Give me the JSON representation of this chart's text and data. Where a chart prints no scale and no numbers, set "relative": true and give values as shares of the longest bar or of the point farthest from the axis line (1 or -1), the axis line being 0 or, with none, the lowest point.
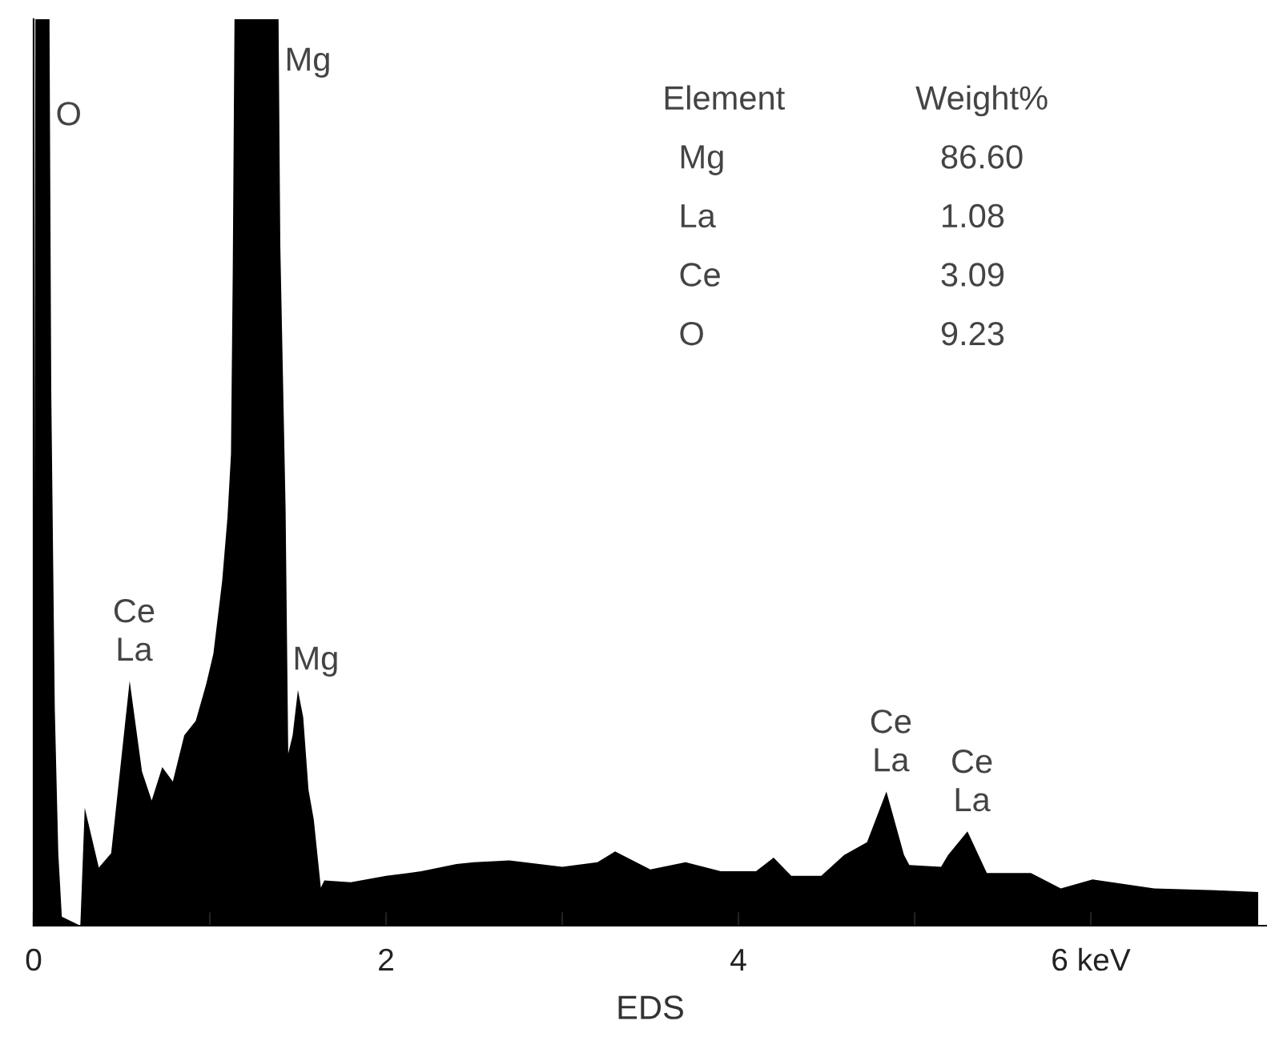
{
  "chart_data": {
    "type": "area",
    "relative": true,
    "xlabel": "EDS",
    "xlim": [
      0,
      7
    ],
    "xticks": [
      0,
      {
        "value": 1,
        "label": null
      },
      2,
      {
        "value": 3,
        "label": null
      },
      4,
      {
        "value": 5,
        "label": null
      },
      {
        "value": 6,
        "label": "6 keV"
      }
    ],
    "series": [
      {
        "color": "#000000",
        "x": [
          0,
          0.01,
          0.09,
          0.1,
          0.12,
          0.14,
          0.16,
          0.265,
          0.29,
          0.37,
          0.44,
          0.545,
          0.615,
          0.67,
          0.73,
          0.79,
          0.855,
          0.92,
          0.98,
          1.02,
          1.07,
          1.1,
          1.12,
          1.13,
          1.14,
          1.39,
          1.4,
          1.43,
          1.445,
          1.47,
          1.5,
          1.53,
          1.56,
          1.59,
          1.63,
          1.65,
          1.8,
          2.0,
          2.2,
          2.4,
          2.5,
          2.7,
          3.0,
          3.2,
          3.3,
          3.5,
          3.7,
          3.9,
          4.1,
          4.2,
          4.3,
          4.47,
          4.6,
          4.73,
          4.84,
          4.94,
          4.97,
          5.15,
          5.19,
          5.3,
          5.41,
          5.66,
          5.83,
          6.01,
          6.36,
          6.71,
          6.95
        ],
        "values": [
          0,
          1,
          1,
          0.59,
          0.24,
          0.08,
          0.01,
          0,
          0.13,
          0.064,
          0.08,
          0.27,
          0.17,
          0.138,
          0.175,
          0.159,
          0.21,
          0.226,
          0.267,
          0.3,
          0.38,
          0.45,
          0.52,
          0.72,
          1,
          1,
          0.75,
          0.46,
          0.19,
          0.21,
          0.26,
          0.23,
          0.15,
          0.117,
          0.042,
          0.05,
          0.048,
          0.055,
          0.06,
          0.068,
          0.07,
          0.072,
          0.065,
          0.07,
          0.082,
          0.062,
          0.07,
          0.06,
          0.06,
          0.075,
          0.055,
          0.055,
          0.078,
          0.092,
          0.148,
          0.078,
          0.067,
          0.065,
          0.078,
          0.104,
          0.058,
          0.058,
          0.041,
          0.051,
          0.041,
          0.039,
          0.037
        ]
      }
    ],
    "annotations": [
      {
        "text": "O",
        "x": 0.1,
        "y": 0.9
      },
      {
        "text": "Mg",
        "x": 1.4,
        "y": 0.96
      },
      {
        "text": "Ce\nLa",
        "x": 0.545,
        "y": 0.27
      },
      {
        "text": "Mg",
        "x": 1.445,
        "y": 0.26
      },
      {
        "text": "Ce\nLa",
        "x": 4.84,
        "y": 0.148
      },
      {
        "text": "Ce\nLa",
        "x": 5.3,
        "y": 0.104
      },
      "Element",
      "Weight%",
      "Mg",
      "86.60",
      "La",
      "1.08",
      "Ce",
      "3.09",
      "O",
      "9.23"
    ]
  }
}
